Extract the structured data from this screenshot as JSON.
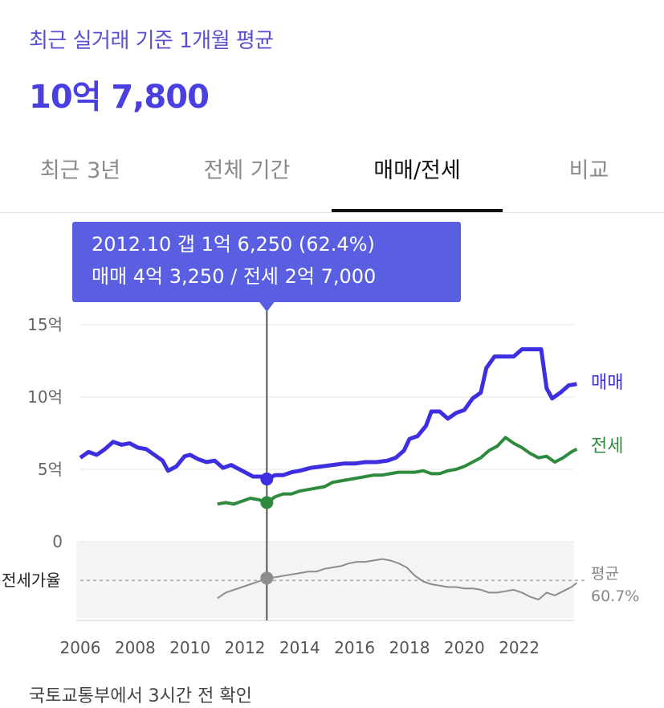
{
  "header": {
    "subtitle": "최근 실거래 기준 1개월 평균",
    "price": "10억 7,800"
  },
  "tabs": [
    {
      "label": "최근 3년",
      "active": false
    },
    {
      "label": "전체 기간",
      "active": false
    },
    {
      "label": "매매/전세",
      "active": true
    },
    {
      "label": "비교",
      "active": false
    }
  ],
  "tooltip": {
    "line1": "2012.10  갭 1억 6,250 (62.4%)",
    "line2": "매매 4억 3,250 / 전세 2억 7,000"
  },
  "footer": {
    "note": "국토교통부에서 3시간 전 확인"
  },
  "colors": {
    "accent": "#4a3fe0",
    "sale": "#3d2fe0",
    "jeonse": "#2e8b3e",
    "ratio": "#8c8c8c",
    "tooltip_bg": "#5a5ee0"
  },
  "chart_data": {
    "type": "line",
    "x_ticks": [
      "2006",
      "2008",
      "2010",
      "2012",
      "2014",
      "2016",
      "2018",
      "2020",
      "2022"
    ],
    "y_ticks": [
      "15억",
      "10억",
      "5억",
      "0"
    ],
    "ylim": [
      0,
      15
    ],
    "xlim": [
      2006,
      2024
    ],
    "grid": true,
    "series": [
      {
        "name": "매매",
        "unit": "억",
        "points": [
          [
            2006.0,
            5.8
          ],
          [
            2006.3,
            6.2
          ],
          [
            2006.6,
            6.0
          ],
          [
            2006.9,
            6.4
          ],
          [
            2007.2,
            6.9
          ],
          [
            2007.5,
            6.7
          ],
          [
            2007.8,
            6.8
          ],
          [
            2008.1,
            6.5
          ],
          [
            2008.4,
            6.4
          ],
          [
            2008.7,
            6.0
          ],
          [
            2009.0,
            5.6
          ],
          [
            2009.2,
            4.9
          ],
          [
            2009.5,
            5.2
          ],
          [
            2009.8,
            5.9
          ],
          [
            2010.0,
            6.0
          ],
          [
            2010.3,
            5.7
          ],
          [
            2010.6,
            5.5
          ],
          [
            2010.9,
            5.6
          ],
          [
            2011.2,
            5.1
          ],
          [
            2011.5,
            5.3
          ],
          [
            2011.8,
            5.0
          ],
          [
            2012.0,
            4.8
          ],
          [
            2012.3,
            4.5
          ],
          [
            2012.6,
            4.5
          ],
          [
            2012.8,
            4.33
          ],
          [
            2013.1,
            4.6
          ],
          [
            2013.4,
            4.6
          ],
          [
            2013.7,
            4.8
          ],
          [
            2014.0,
            4.9
          ],
          [
            2014.4,
            5.1
          ],
          [
            2014.8,
            5.2
          ],
          [
            2015.2,
            5.3
          ],
          [
            2015.6,
            5.4
          ],
          [
            2016.0,
            5.4
          ],
          [
            2016.4,
            5.5
          ],
          [
            2016.8,
            5.5
          ],
          [
            2017.2,
            5.6
          ],
          [
            2017.5,
            5.8
          ],
          [
            2017.8,
            6.3
          ],
          [
            2018.0,
            7.1
          ],
          [
            2018.3,
            7.3
          ],
          [
            2018.6,
            8.0
          ],
          [
            2018.8,
            9.0
          ],
          [
            2019.1,
            9.0
          ],
          [
            2019.4,
            8.5
          ],
          [
            2019.7,
            8.9
          ],
          [
            2020.0,
            9.1
          ],
          [
            2020.3,
            9.9
          ],
          [
            2020.6,
            10.3
          ],
          [
            2020.8,
            12.0
          ],
          [
            2021.1,
            12.8
          ],
          [
            2021.5,
            12.8
          ],
          [
            2021.8,
            12.8
          ],
          [
            2022.1,
            13.3
          ],
          [
            2022.5,
            13.3
          ],
          [
            2022.8,
            13.3
          ],
          [
            2023.0,
            10.6
          ],
          [
            2023.2,
            9.9
          ],
          [
            2023.5,
            10.3
          ],
          [
            2023.8,
            10.8
          ],
          [
            2024.1,
            10.9
          ]
        ]
      },
      {
        "name": "전세",
        "unit": "억",
        "points": [
          [
            2011.0,
            2.6
          ],
          [
            2011.3,
            2.7
          ],
          [
            2011.6,
            2.6
          ],
          [
            2011.9,
            2.8
          ],
          [
            2012.2,
            3.0
          ],
          [
            2012.5,
            2.9
          ],
          [
            2012.8,
            2.7
          ],
          [
            2013.1,
            3.1
          ],
          [
            2013.4,
            3.3
          ],
          [
            2013.7,
            3.3
          ],
          [
            2014.0,
            3.5
          ],
          [
            2014.3,
            3.6
          ],
          [
            2014.6,
            3.7
          ],
          [
            2014.9,
            3.8
          ],
          [
            2015.2,
            4.1
          ],
          [
            2015.5,
            4.2
          ],
          [
            2015.8,
            4.3
          ],
          [
            2016.1,
            4.4
          ],
          [
            2016.4,
            4.5
          ],
          [
            2016.7,
            4.6
          ],
          [
            2017.0,
            4.6
          ],
          [
            2017.3,
            4.7
          ],
          [
            2017.6,
            4.8
          ],
          [
            2017.9,
            4.8
          ],
          [
            2018.2,
            4.8
          ],
          [
            2018.5,
            4.9
          ],
          [
            2018.8,
            4.7
          ],
          [
            2019.1,
            4.7
          ],
          [
            2019.4,
            4.9
          ],
          [
            2019.7,
            5.0
          ],
          [
            2020.0,
            5.2
          ],
          [
            2020.3,
            5.5
          ],
          [
            2020.6,
            5.8
          ],
          [
            2020.9,
            6.3
          ],
          [
            2021.2,
            6.6
          ],
          [
            2021.5,
            7.2
          ],
          [
            2021.8,
            6.8
          ],
          [
            2022.1,
            6.5
          ],
          [
            2022.4,
            6.1
          ],
          [
            2022.7,
            5.8
          ],
          [
            2023.0,
            5.9
          ],
          [
            2023.3,
            5.5
          ],
          [
            2023.6,
            5.8
          ],
          [
            2023.9,
            6.2
          ],
          [
            2024.1,
            6.4
          ]
        ]
      }
    ],
    "ratio_series": {
      "label": "전세가율",
      "average_label": "평균",
      "average_value": "60.7%",
      "average": 60.7,
      "unit": "%",
      "points": [
        [
          2011.0,
          48
        ],
        [
          2011.3,
          52
        ],
        [
          2011.6,
          54
        ],
        [
          2011.9,
          56
        ],
        [
          2012.2,
          58
        ],
        [
          2012.5,
          60
        ],
        [
          2012.8,
          62.4
        ],
        [
          2013.1,
          63
        ],
        [
          2013.4,
          64
        ],
        [
          2013.7,
          65
        ],
        [
          2014.0,
          66
        ],
        [
          2014.3,
          67
        ],
        [
          2014.6,
          67
        ],
        [
          2014.9,
          69
        ],
        [
          2015.2,
          70
        ],
        [
          2015.5,
          71
        ],
        [
          2015.8,
          73
        ],
        [
          2016.1,
          74
        ],
        [
          2016.4,
          74
        ],
        [
          2016.7,
          75
        ],
        [
          2017.0,
          76
        ],
        [
          2017.3,
          75
        ],
        [
          2017.6,
          73
        ],
        [
          2017.9,
          70
        ],
        [
          2018.2,
          64
        ],
        [
          2018.5,
          60
        ],
        [
          2018.8,
          58
        ],
        [
          2019.1,
          57
        ],
        [
          2019.4,
          56
        ],
        [
          2019.7,
          56
        ],
        [
          2020.0,
          55
        ],
        [
          2020.3,
          55
        ],
        [
          2020.6,
          54
        ],
        [
          2020.9,
          52
        ],
        [
          2021.2,
          52
        ],
        [
          2021.5,
          53
        ],
        [
          2021.8,
          54
        ],
        [
          2022.1,
          52
        ],
        [
          2022.4,
          49
        ],
        [
          2022.7,
          47
        ],
        [
          2023.0,
          52
        ],
        [
          2023.3,
          50
        ],
        [
          2023.6,
          53
        ],
        [
          2023.9,
          56
        ],
        [
          2024.1,
          59
        ]
      ]
    },
    "cursor": {
      "date": "2012.10",
      "x": 2012.8,
      "sale": 4.33,
      "jeonse": 2.7,
      "ratio": 62.4
    }
  }
}
